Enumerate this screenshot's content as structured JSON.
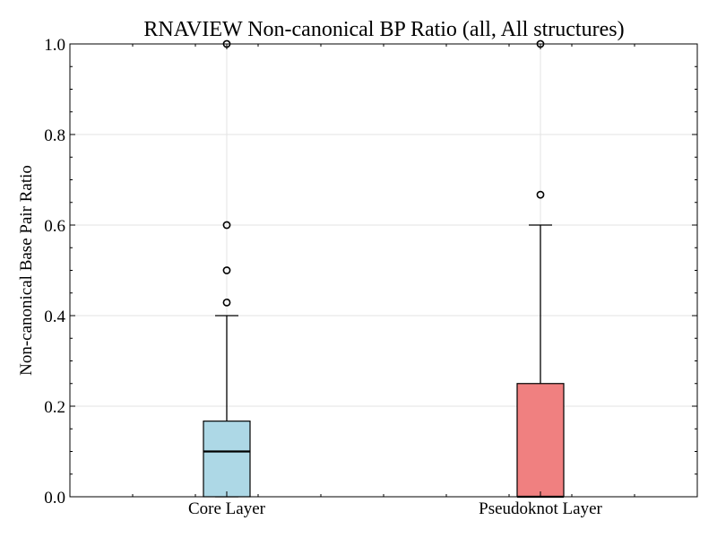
{
  "chart_data": {
    "type": "box",
    "title": "RNAVIEW Non-canonical BP Ratio (all, All structures)",
    "xlabel": "",
    "ylabel": "Non-canonical Base Pair Ratio",
    "ylim": [
      0.0,
      1.0
    ],
    "y_ticks": [
      "0.0",
      "0.2",
      "0.4",
      "0.6",
      "0.8",
      "1.0"
    ],
    "y_tick_values": [
      0.0,
      0.2,
      0.4,
      0.6,
      0.8,
      1.0
    ],
    "grid": true,
    "categories": [
      "Core Layer",
      "Pseudoknot Layer"
    ],
    "boxes": [
      {
        "name": "Core Layer",
        "color": "#add8e6",
        "whisker_low": 0.0,
        "q1": 0.0,
        "median": 0.1,
        "q3": 0.167,
        "whisker_high": 0.4,
        "outliers": [
          0.429,
          0.5,
          0.6,
          1.0
        ]
      },
      {
        "name": "Pseudoknot Layer",
        "color": "#f08080",
        "whisker_low": 0.0,
        "q1": 0.0,
        "median": 0.0,
        "q3": 0.25,
        "whisker_high": 0.6,
        "outliers": [
          0.667,
          1.0
        ]
      }
    ]
  }
}
